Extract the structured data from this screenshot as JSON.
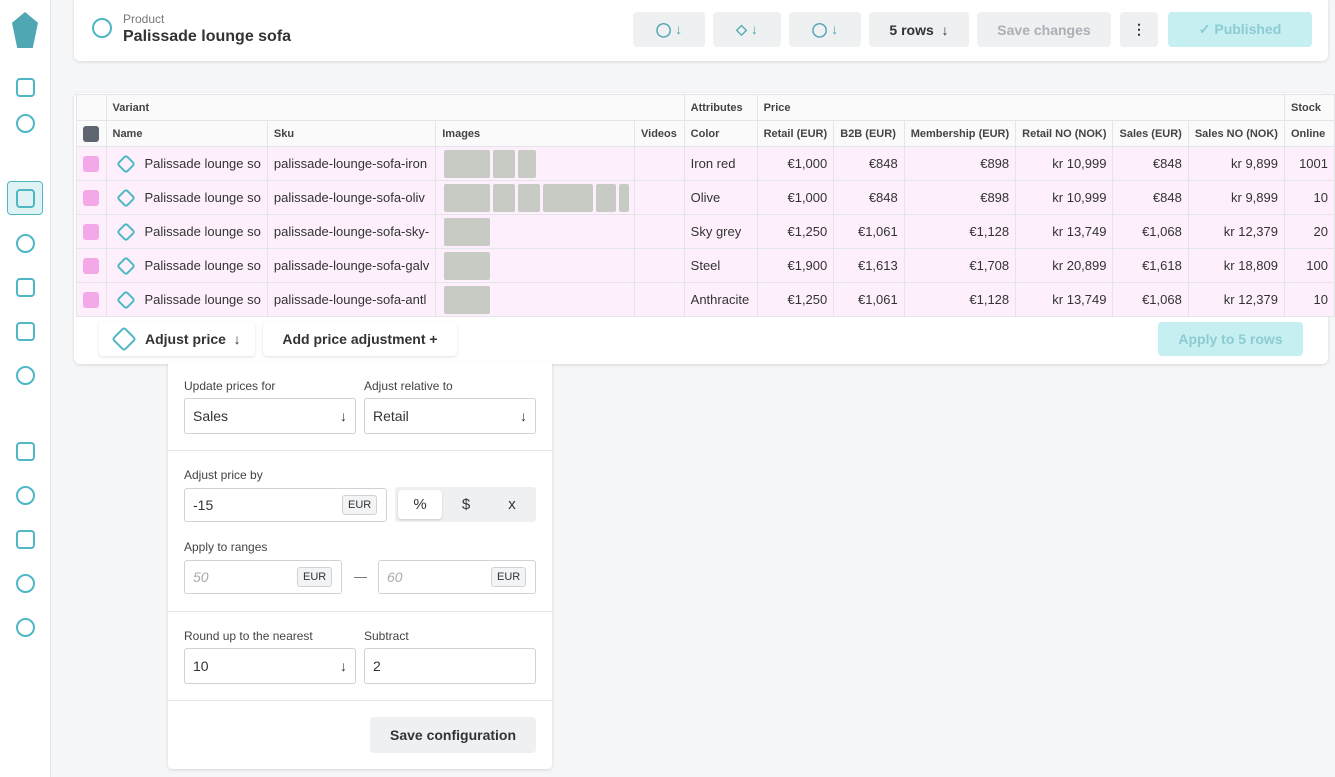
{
  "header": {
    "label": "Product",
    "title": "Palissade lounge sofa",
    "rows_button": "5 rows",
    "save": "Save changes",
    "published": "✓ Published"
  },
  "table": {
    "groups": [
      "Variant",
      "Attributes",
      "Price",
      "Stock"
    ],
    "columns": [
      "Name",
      "Sku",
      "Images",
      "Videos",
      "Color",
      "Retail (EUR)",
      "B2B (EUR)",
      "Membership (EUR)",
      "Retail NO (NOK)",
      "Sales (EUR)",
      "Sales NO (NOK)",
      "Online"
    ],
    "rows": [
      [
        "Palissade lounge so",
        "palissade-lounge-sofa-iron",
        "Iron red",
        "€1,000",
        "€848",
        "€898",
        "kr 10,999",
        "€848",
        "kr 9,899",
        1001
      ],
      [
        "Palissade lounge so",
        "palissade-lounge-sofa-oliv",
        "Olive",
        "€1,000",
        "€848",
        "€898",
        "kr 10,999",
        "€848",
        "kr 9,899",
        10
      ],
      [
        "Palissade lounge so",
        "palissade-lounge-sofa-sky-",
        "Sky grey",
        "€1,250",
        "€1,061",
        "€1,128",
        "kr 13,749",
        "€1,068",
        "kr 12,379",
        20
      ],
      [
        "Palissade lounge so",
        "palissade-lounge-sofa-galv",
        "Steel",
        "€1,900",
        "€1,613",
        "€1,708",
        "kr 20,899",
        "€1,618",
        "kr 18,809",
        100
      ],
      [
        "Palissade lounge so",
        "palissade-lounge-sofa-antl",
        "Anthracite",
        "€1,250",
        "€1,061",
        "€1,128",
        "kr 13,749",
        "€1,068",
        "kr 12,379",
        10
      ]
    ]
  },
  "toolbar": {
    "adjust": "Adjust price",
    "add": "Add price adjustment +",
    "apply": "Apply to 5 rows"
  },
  "panel": {
    "update_label": "Update prices for",
    "update_value": "Sales",
    "relative_label": "Adjust relative to",
    "relative_value": "Retail",
    "adjust_label": "Adjust price by",
    "adjust_value": "-15",
    "adjust_unit": "EUR",
    "modes": [
      "%",
      "$",
      "x"
    ],
    "ranges_label": "Apply to ranges",
    "range_from": "50",
    "range_from_unit": "EUR",
    "range_sep": "—",
    "range_to": "60",
    "range_to_unit": "EUR",
    "round_label": "Round up to the nearest",
    "round_value": "10",
    "subtract_label": "Subtract",
    "subtract_value": "2",
    "save": "Save configuration"
  }
}
